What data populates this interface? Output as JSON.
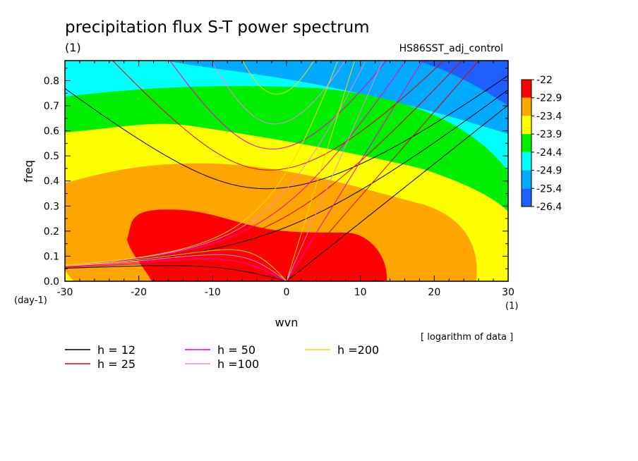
{
  "chart_data": {
    "type": "heatmap",
    "title": "precipitation flux S-T power spectrum",
    "unit_label": "(1)",
    "run_label": "HS86SST_adj_control",
    "xlabel": "wvn",
    "ylabel": "freq",
    "x_unit": "(1)",
    "y_unit": "(day-1)",
    "xlim": [
      -30,
      30
    ],
    "ylim": [
      0,
      0.88
    ],
    "xticks": [
      -30,
      -20,
      -10,
      0,
      10,
      20,
      30
    ],
    "yticks": [
      0.0,
      0.1,
      0.2,
      0.3,
      0.4,
      0.5,
      0.6,
      0.7,
      0.8
    ],
    "colorbar": {
      "levels": [
        "-22",
        "-22.9",
        "-23.4",
        "-23.9",
        "-24.4",
        "-24.9",
        "-25.4",
        "-26.4"
      ],
      "colors": [
        "#ff0000",
        "#ffa500",
        "#ffff00",
        "#00ee00",
        "#00ffff",
        "#00aaff",
        "#1e60ff"
      ]
    },
    "note": "[ logarithm of data ]",
    "dispersion_curves": [
      {
        "label": "h = 12",
        "h": 12,
        "color": "#000000"
      },
      {
        "label": "h = 25",
        "h": 25,
        "color": "#e00000"
      },
      {
        "label": "h = 50",
        "h": 50,
        "color": "#ee00cc"
      },
      {
        "label": "h =100",
        "h": 100,
        "color": "#ee88dd"
      },
      {
        "label": "h =200",
        "h": 200,
        "color": "#eedd00"
      }
    ]
  }
}
